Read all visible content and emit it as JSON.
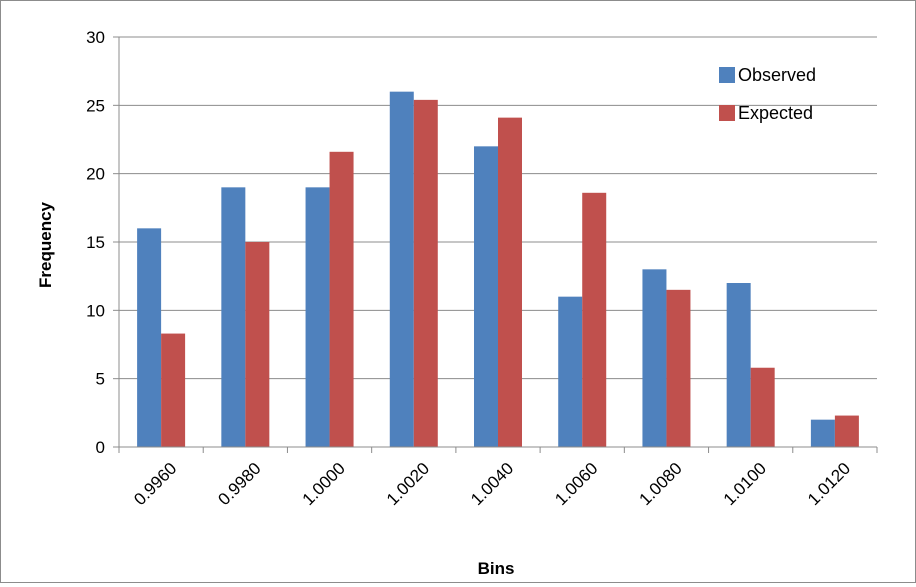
{
  "chart_data": {
    "type": "bar",
    "title": "",
    "xlabel": "Bins",
    "ylabel": "Frequency",
    "categories": [
      "0.9960",
      "0.9980",
      "1.0000",
      "1.0020",
      "1.0040",
      "1.0060",
      "1.0080",
      "1.0100",
      "1.0120"
    ],
    "series": [
      {
        "name": "Observed",
        "color": "#4f81bd",
        "values": [
          16,
          19,
          19,
          26,
          22,
          11,
          13,
          12,
          2
        ]
      },
      {
        "name": "Expected",
        "color": "#c0504d",
        "values": [
          8.3,
          15.0,
          21.6,
          25.4,
          24.1,
          18.6,
          11.5,
          5.8,
          2.3
        ]
      }
    ],
    "ylim": [
      0,
      30
    ],
    "yticks": [
      "0",
      "5",
      "10",
      "15",
      "20",
      "25",
      "30"
    ],
    "grid": true,
    "legend_position": "top-right"
  }
}
